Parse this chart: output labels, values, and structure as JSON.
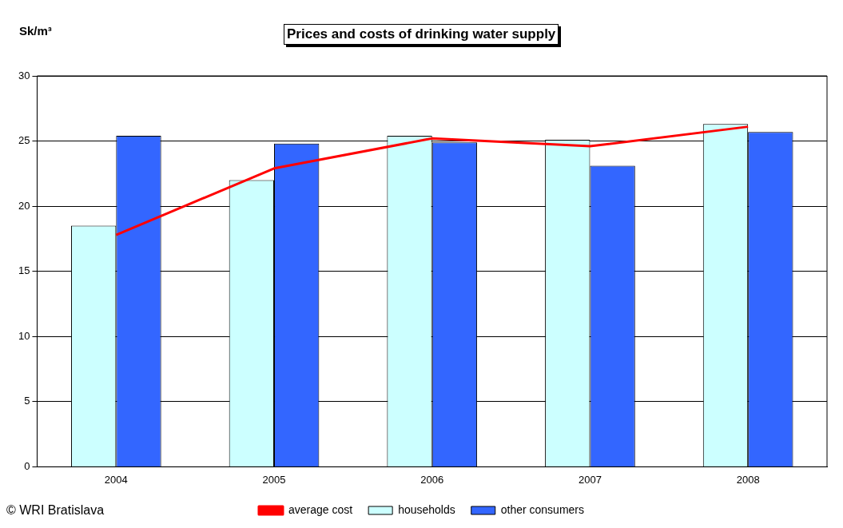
{
  "chart_data": {
    "type": "bar",
    "title": "Prices and costs of drinking water supply",
    "ylabel": "Sk/m³",
    "categories": [
      "2004",
      "2005",
      "2006",
      "2007",
      "2008"
    ],
    "series": [
      {
        "name": "households",
        "color": "#ccffff",
        "values": [
          18.5,
          22.0,
          25.4,
          25.1,
          26.3
        ]
      },
      {
        "name": "other consumers",
        "color": "#3366ff",
        "values": [
          25.4,
          24.8,
          24.9,
          23.1,
          25.7
        ]
      },
      {
        "name": "average cost",
        "type": "line",
        "color": "#ff0000",
        "values": [
          17.8,
          22.9,
          25.2,
          24.6,
          26.1
        ]
      }
    ],
    "ylim": [
      0,
      30
    ],
    "yticks": [
      0,
      5,
      10,
      15,
      20,
      25,
      30
    ],
    "grid": "y",
    "legend": "bottom",
    "marker": "none",
    "line_style": "solid",
    "annotations": [
      "© WRI Bratislava"
    ]
  }
}
